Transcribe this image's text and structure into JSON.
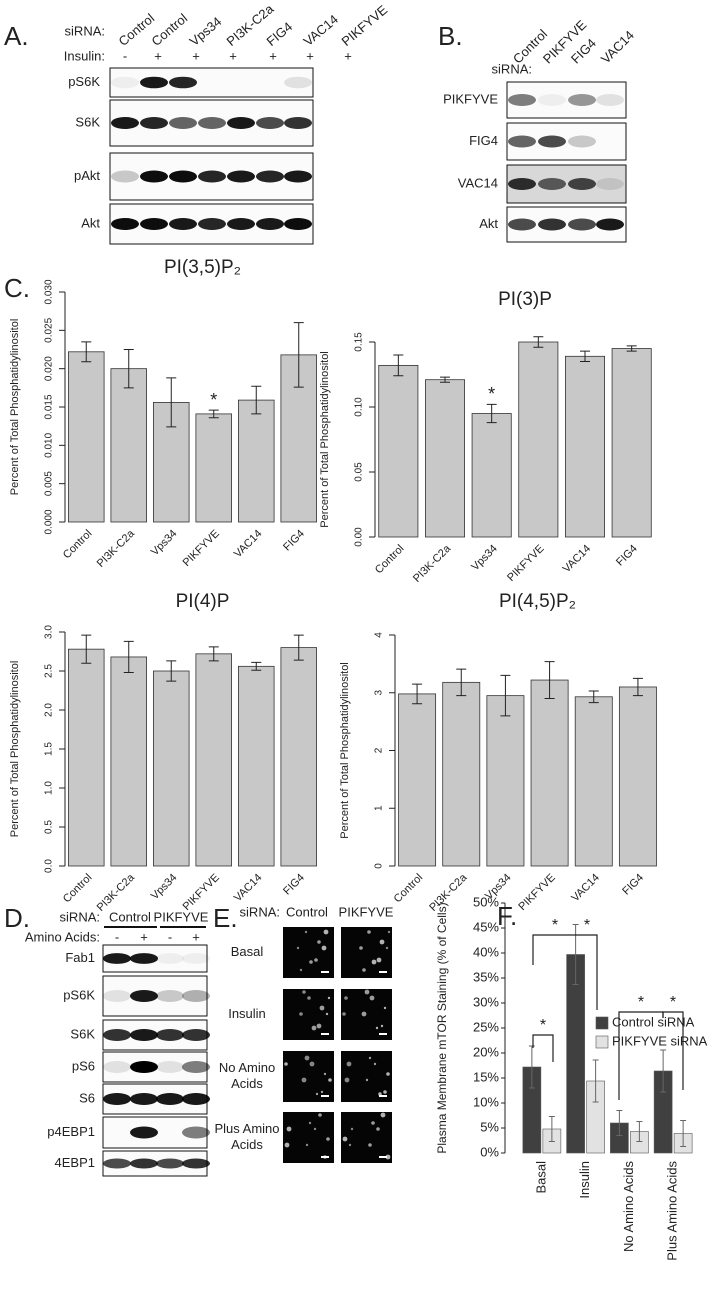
{
  "panel_a": {
    "label": "A.",
    "sirna_label": "siRNA:",
    "columns": [
      "Control",
      "Control",
      "Vps34",
      "PI3K-C2a",
      "FIG4",
      "VAC14",
      "PIKFYVE"
    ],
    "insulin_label": "Insulin:",
    "insulin": [
      "-",
      "+",
      "+",
      "+",
      "+",
      "+",
      "+"
    ],
    "blots": [
      "pS6K",
      "S6K",
      "pAkt",
      "Akt"
    ]
  },
  "panel_b": {
    "label": "B.",
    "sirna_label": "siRNA:",
    "columns": [
      "Control",
      "PIKFYVE",
      "FIG4",
      "VAC14"
    ],
    "blots": [
      "PIKFYVE",
      "FIG4",
      "VAC14",
      "Akt"
    ]
  },
  "panel_c": {
    "label": "C."
  },
  "chart_data": [
    {
      "type": "bar",
      "title": "PI(3,5)P₂",
      "ylabel": "Percent of Total Phosphatidylinositol",
      "categories": [
        "Control",
        "PI3K-C2a",
        "Vps34",
        "PIKFYVE",
        "VAC14",
        "FIG4"
      ],
      "values": [
        0.0222,
        0.02,
        0.0156,
        0.0141,
        0.0159,
        0.0218
      ],
      "errors": [
        0.0013,
        0.0025,
        0.0032,
        0.0005,
        0.0018,
        0.0042
      ],
      "color": "#c8c8c8",
      "ylim": [
        0,
        0.03
      ],
      "yticks": [
        {
          "value": 0,
          "label": "0.000"
        },
        0.005,
        {
          "value": 0.01,
          "label": "0.010"
        },
        0.015,
        {
          "value": 0.02,
          "label": "0.020"
        },
        0.025,
        {
          "value": 0.03,
          "label": "0.030"
        }
      ],
      "annotations": [
        {
          "text": "*",
          "category": "PIKFYVE"
        }
      ]
    },
    {
      "type": "bar",
      "title": "PI(3)P",
      "ylabel": "Percent of Total Phosphatidylinositol",
      "categories": [
        "Control",
        "PI3K-C2a",
        "Vps34",
        "PIKFYVE",
        "VAC14",
        "FIG4"
      ],
      "values": [
        0.132,
        0.121,
        0.095,
        0.15,
        0.139,
        0.145
      ],
      "errors": [
        0.008,
        0.002,
        0.007,
        0.004,
        0.004,
        0.002
      ],
      "color": "#c8c8c8",
      "ylim": [
        0,
        0.15
      ],
      "yticks": [
        {
          "value": 0,
          "label": "0.00"
        },
        0.05,
        {
          "value": 0.1,
          "label": "0.10"
        },
        0.15
      ],
      "annotations": [
        {
          "text": "*",
          "category": "Vps34"
        }
      ]
    },
    {
      "type": "bar",
      "title": "PI(4)P",
      "ylabel": "Percent of Total Phosphatidylinositol",
      "categories": [
        "Control",
        "PI3K-C2a",
        "Vps34",
        "PIKFYVE",
        "VAC14",
        "FIG4"
      ],
      "values": [
        2.78,
        2.68,
        2.5,
        2.72,
        2.56,
        2.8
      ],
      "errors": [
        0.18,
        0.2,
        0.13,
        0.09,
        0.05,
        0.16
      ],
      "color": "#c8c8c8",
      "ylim": [
        0,
        3
      ],
      "yticks": [
        {
          "value": 0,
          "label": "0.0"
        },
        0.5,
        {
          "value": 1,
          "label": "1.0"
        },
        1.5,
        {
          "value": 2,
          "label": "2.0"
        },
        2.5,
        {
          "value": 3,
          "label": "3.0"
        }
      ],
      "annotations": []
    },
    {
      "type": "bar",
      "title": "PI(4,5)P₂",
      "ylabel": "Percent of Total Phosphatidylinositol",
      "categories": [
        "Control",
        "PI3K-C2a",
        "Vps34",
        "PIKFYVE",
        "VAC14",
        "FIG4"
      ],
      "values": [
        2.98,
        3.18,
        2.95,
        3.22,
        2.93,
        3.1
      ],
      "errors": [
        0.17,
        0.23,
        0.35,
        0.32,
        0.1,
        0.15
      ],
      "color": "#c8c8c8",
      "ylim": [
        0,
        4
      ],
      "yticks": [
        0,
        1,
        2,
        3,
        4
      ],
      "annotations": []
    },
    {
      "type": "grouped_bar",
      "ylabel": "Plasma Membrane mTOR Staining (% of Cells)",
      "categories": [
        "Basal",
        "Insulin",
        "No Amino Acids",
        "Plus Amino Acids"
      ],
      "series": [
        {
          "name": "Control siRNA",
          "color": "#404040",
          "values": [
            17.2,
            39.7,
            6.0,
            16.4
          ],
          "errors": [
            4.2,
            6.0,
            2.5,
            4.2
          ]
        },
        {
          "name": "PIKFYVE siRNA",
          "color": "#e2e2e2",
          "values": [
            4.8,
            14.4,
            4.3,
            3.9
          ],
          "errors": [
            2.5,
            4.2,
            2.0,
            2.6
          ]
        }
      ],
      "ylim": [
        0,
        50
      ],
      "yticks": [
        {
          "value": 0,
          "label": "0%"
        },
        {
          "value": 5,
          "label": "5%"
        },
        {
          "value": 10,
          "label": "10%"
        },
        {
          "value": 15,
          "label": "15%"
        },
        {
          "value": 20,
          "label": "20%"
        },
        {
          "value": 25,
          "label": "25%"
        },
        {
          "value": 30,
          "label": "30%"
        },
        {
          "value": 35,
          "label": "35%"
        },
        {
          "value": 40,
          "label": "40%"
        },
        {
          "value": 45,
          "label": "45%"
        },
        {
          "value": 50,
          "label": "50%"
        }
      ],
      "annotations": [
        {
          "text": "*"
        },
        {
          "text": "*"
        },
        {
          "text": "*"
        },
        {
          "text": "*"
        },
        {
          "text": "*"
        }
      ]
    }
  ],
  "panel_d": {
    "label": "D.",
    "sirna_label": "siRNA:",
    "groups": [
      "Control",
      "PIKFYVE"
    ],
    "amino_label": "Amino Acids:",
    "amino": [
      "-",
      "+",
      "-",
      "+"
    ],
    "blots": [
      "Fab1",
      "pS6K",
      "S6K",
      "pS6",
      "S6",
      "p4EBP1",
      "4EBP1"
    ]
  },
  "panel_e": {
    "label": "E.",
    "sirna_label": "siRNA:",
    "columns": [
      "Control",
      "PIKFYVE"
    ],
    "rows": [
      "Basal",
      "Insulin",
      "No Amino Acids",
      "Plus Amino Acids"
    ]
  },
  "panel_f": {
    "label": "F."
  }
}
